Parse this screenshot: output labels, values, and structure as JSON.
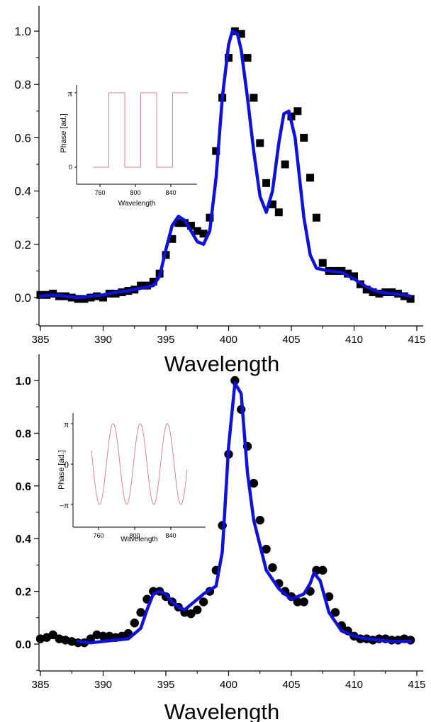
{
  "chart_data": [
    {
      "type": "scatter",
      "xlabel": "Wavelength",
      "ylabel": "",
      "xlim": [
        384.5,
        415.5
      ],
      "ylim": [
        -0.12,
        1.1
      ],
      "xticks": [
        "385",
        "390",
        "395",
        "400",
        "405",
        "410",
        "415"
      ],
      "yticks": [
        "0.0",
        "0.2",
        "0.4",
        "0.6",
        "0.8",
        "1.0"
      ],
      "grid": false,
      "series": [
        {
          "marker": "square",
          "color": "#000000",
          "x": [
            385,
            385.5,
            386,
            386.5,
            387,
            387.5,
            388,
            388.5,
            389,
            389.5,
            390,
            390.5,
            391,
            391.5,
            392,
            392.5,
            393,
            393.5,
            394,
            394.5,
            395,
            395.5,
            396,
            396.5,
            397,
            397.5,
            398,
            398.5,
            399,
            399.5,
            400,
            400.5,
            401,
            401.5,
            402,
            402.5,
            403,
            403.5,
            404,
            404.5,
            405,
            405.5,
            406,
            406.5,
            407,
            407.5,
            408,
            408.5,
            409,
            409.5,
            410,
            410.5,
            411,
            411.5,
            412,
            412.5,
            413,
            413.5,
            414,
            414.5
          ],
          "y": [
            0.01,
            0.01,
            0.015,
            0.005,
            0.005,
            0.0,
            -0.005,
            -0.005,
            0.0,
            0.005,
            0.0,
            0.015,
            0.015,
            0.02,
            0.025,
            0.03,
            0.045,
            0.045,
            0.06,
            0.09,
            0.16,
            0.22,
            0.28,
            0.28,
            0.27,
            0.25,
            0.24,
            0.3,
            0.55,
            0.75,
            0.9,
            1.0,
            0.99,
            0.9,
            0.75,
            0.58,
            0.43,
            0.35,
            0.32,
            0.5,
            0.68,
            0.7,
            0.6,
            0.45,
            0.3,
            0.13,
            0.1,
            0.1,
            0.1,
            0.09,
            0.08,
            0.05,
            0.03,
            0.02,
            0.015,
            0.02,
            0.02,
            0.015,
            0.005,
            -0.005
          ]
        },
        {
          "line": true,
          "color": "#1010dd",
          "x": [
            385,
            386,
            387,
            388,
            389,
            390,
            391,
            392,
            393,
            394,
            394.5,
            395,
            395.5,
            396,
            396.5,
            397,
            397.5,
            398,
            398.5,
            399,
            399.5,
            400,
            400.3,
            400.7,
            401,
            401.5,
            402,
            402.5,
            403,
            403.5,
            404,
            404.4,
            404.8,
            405.3,
            406,
            406.5,
            407,
            408,
            409,
            410,
            411,
            412,
            413,
            414,
            414.5
          ],
          "y": [
            0.005,
            0.01,
            0.005,
            0.0,
            0.005,
            0.01,
            0.02,
            0.025,
            0.035,
            0.045,
            0.08,
            0.18,
            0.27,
            0.305,
            0.29,
            0.25,
            0.21,
            0.2,
            0.25,
            0.45,
            0.75,
            0.95,
            1.0,
            0.99,
            0.93,
            0.75,
            0.55,
            0.38,
            0.32,
            0.4,
            0.58,
            0.69,
            0.7,
            0.6,
            0.3,
            0.16,
            0.11,
            0.1,
            0.095,
            0.07,
            0.04,
            0.02,
            0.015,
            0.01,
            0.005
          ]
        }
      ],
      "inset": {
        "type": "line",
        "xlabel": "Wavelength",
        "ylabel": "Phase  [ad.]",
        "xlim": [
          740,
          870
        ],
        "xticks": [
          "760",
          "800",
          "840"
        ],
        "yticks": [
          "0",
          "π"
        ],
        "ylim": [
          -0.3,
          3.4
        ],
        "color": "#cc8888",
        "x": [
          752,
          770,
          770,
          788,
          788,
          806,
          806,
          824,
          824,
          842,
          842,
          860
        ],
        "y": [
          0,
          0,
          3.14,
          3.14,
          0,
          0,
          3.14,
          3.14,
          0,
          0,
          3.14,
          3.14
        ]
      }
    },
    {
      "type": "scatter",
      "xlabel": "Wavelength",
      "ylabel": "",
      "xlim": [
        384.5,
        415.5
      ],
      "ylim": [
        -0.12,
        1.1
      ],
      "xticks": [
        "385",
        "390",
        "395",
        "400",
        "405",
        "410",
        "415"
      ],
      "yticks": [
        "0.0",
        "0.2",
        "0.4",
        "0.6",
        "0.8",
        "1.0"
      ],
      "grid": false,
      "series": [
        {
          "marker": "circle",
          "color": "#000000",
          "x": [
            385,
            385.5,
            386,
            386.5,
            387,
            387.5,
            388,
            388.5,
            389,
            389.5,
            390,
            390.5,
            391,
            391.5,
            392,
            392.5,
            393,
            393.5,
            394,
            394.5,
            395,
            395.5,
            396,
            396.5,
            397,
            397.5,
            398,
            398.5,
            399,
            399.5,
            400,
            400.5,
            401,
            401.5,
            402,
            402.5,
            403,
            403.5,
            404,
            404.5,
            405,
            405.5,
            406,
            406.5,
            407,
            407.5,
            408,
            408.5,
            409,
            409.5,
            410,
            410.5,
            411,
            411.5,
            412,
            412.5,
            413,
            413.5,
            414,
            414.5
          ],
          "y": [
            0.02,
            0.025,
            0.035,
            0.02,
            0.015,
            0.01,
            0.005,
            0.005,
            0.02,
            0.035,
            0.03,
            0.03,
            0.025,
            0.03,
            0.04,
            0.08,
            0.12,
            0.17,
            0.2,
            0.2,
            0.18,
            0.16,
            0.14,
            0.12,
            0.115,
            0.13,
            0.16,
            0.2,
            0.28,
            0.45,
            0.72,
            1.0,
            0.89,
            0.75,
            0.61,
            0.47,
            0.36,
            0.29,
            0.23,
            0.2,
            0.18,
            0.16,
            0.16,
            0.2,
            0.28,
            0.28,
            0.18,
            0.12,
            0.07,
            0.05,
            0.03,
            0.02,
            0.02,
            0.015,
            0.02,
            0.02,
            0.015,
            0.015,
            0.02,
            0.015
          ]
        },
        {
          "line": true,
          "color": "#1010dd",
          "x": [
            388,
            389,
            390,
            391,
            392,
            393,
            393.5,
            394,
            394.5,
            395,
            395.5,
            396,
            396.5,
            397,
            397.5,
            398,
            399,
            399.5,
            400,
            400.5,
            401,
            401.5,
            402,
            403,
            404,
            405,
            405.5,
            406,
            406.5,
            406.8,
            407.3,
            408,
            409,
            410,
            411,
            412,
            413,
            414,
            414.5
          ],
          "y": [
            0.01,
            0.005,
            0.01,
            0.015,
            0.02,
            0.06,
            0.13,
            0.19,
            0.2,
            0.19,
            0.16,
            0.14,
            0.13,
            0.15,
            0.17,
            0.19,
            0.22,
            0.35,
            0.75,
            0.99,
            0.95,
            0.65,
            0.47,
            0.28,
            0.21,
            0.17,
            0.18,
            0.19,
            0.23,
            0.27,
            0.24,
            0.12,
            0.05,
            0.03,
            0.02,
            0.015,
            0.01,
            0.01,
            0.01
          ]
        }
      ],
      "inset": {
        "type": "line",
        "xlabel": "Wavelength",
        "ylabel": "Phase  [ad.]",
        "xlim": [
          740,
          870
        ],
        "xticks": [
          "760",
          "800",
          "840"
        ],
        "yticks": [
          "π",
          "0",
          "–π"
        ],
        "ylim": [
          -3.6,
          3.6
        ],
        "color": "#cc8888",
        "waveform": "sine",
        "x_start": 752,
        "x_end": 858,
        "period": 30,
        "amplitude": 3.14,
        "phase_offset_deg": 160
      }
    }
  ]
}
